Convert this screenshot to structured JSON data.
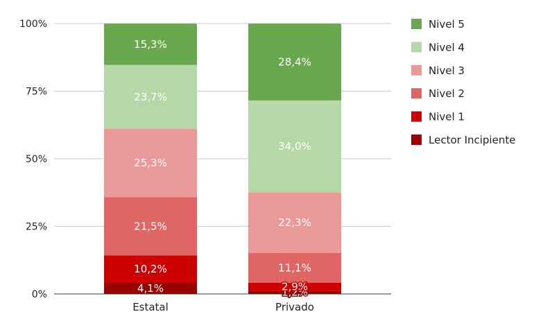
{
  "chart_data": {
    "type": "bar",
    "stacked": true,
    "normalized": true,
    "categories": [
      "Estatal",
      "Privado"
    ],
    "series": [
      {
        "name": "Lector Incipiente",
        "color": "#990000",
        "values": [
          4.1,
          1.2
        ],
        "labels": [
          "4,1%",
          "1,2%"
        ]
      },
      {
        "name": "Nivel 1",
        "color": "#cc0000",
        "values": [
          10.2,
          2.9
        ],
        "labels": [
          "10,2%",
          "2,9%"
        ]
      },
      {
        "name": "Nivel 2",
        "color": "#e06666",
        "values": [
          21.5,
          11.1
        ],
        "labels": [
          "21,5%",
          "11,1%"
        ]
      },
      {
        "name": "Nivel 3",
        "color": "#ea9999",
        "values": [
          25.3,
          22.3
        ],
        "labels": [
          "25,3%",
          "22,3%"
        ]
      },
      {
        "name": "Nivel 4",
        "color": "#b6d7a8",
        "values": [
          23.7,
          34.0
        ],
        "labels": [
          "23,7%",
          "34,0%"
        ]
      },
      {
        "name": "Nivel 5",
        "color": "#6aa84f",
        "values": [
          15.3,
          28.4
        ],
        "labels": [
          "15,3%",
          "28,4%"
        ]
      }
    ],
    "y_ticks": [
      "0%",
      "25%",
      "50%",
      "75%",
      "100%"
    ],
    "ylim": [
      0,
      100
    ],
    "legend_position": "right",
    "grid": true,
    "title": "",
    "xlabel": "",
    "ylabel": ""
  }
}
